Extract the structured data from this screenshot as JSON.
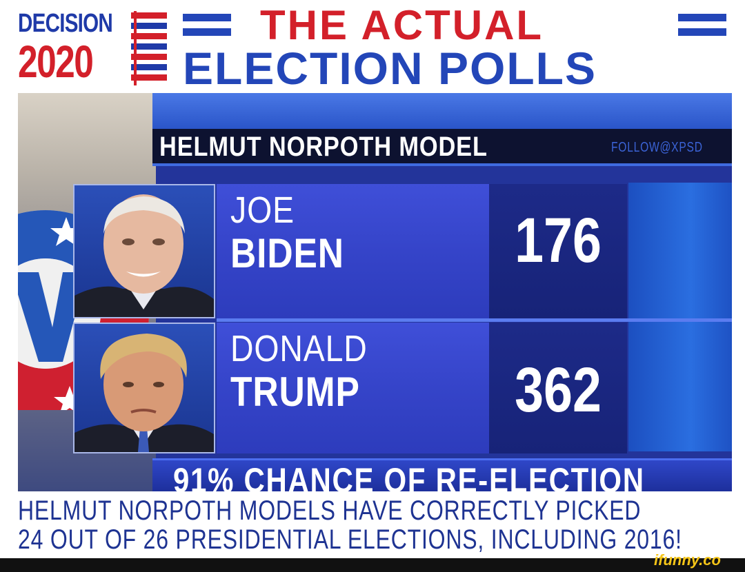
{
  "logo": {
    "line1": "DECISION",
    "line2": "2020"
  },
  "headline": {
    "line1": "THE ACTUAL",
    "line2": "ELECTION POLLS"
  },
  "graphic": {
    "model_title": "HELMUT NORPOTH MODEL",
    "follow_tag": "FOLLOW@XPSD",
    "candidates": [
      {
        "first": "JOE",
        "last": "BIDEN",
        "score": "176"
      },
      {
        "first": "DONALD",
        "last": "TRUMP",
        "score": "362"
      }
    ],
    "chance": "91% CHANCE OF RE-ELECTION"
  },
  "caption": {
    "line1": "HELMUT NORPOTH MODELS HAVE CORRECTLY PICKED",
    "line2": "24 OUT OF 26 PRESIDENTIAL ELECTIONS, INCLUDING 2016!"
  },
  "watermark": "ifunny.co",
  "colors": {
    "brand_blue": "#2346b8",
    "brand_red": "#d3202a",
    "panel_blue": "#3544c9",
    "score_blue": "#1d2a88"
  }
}
